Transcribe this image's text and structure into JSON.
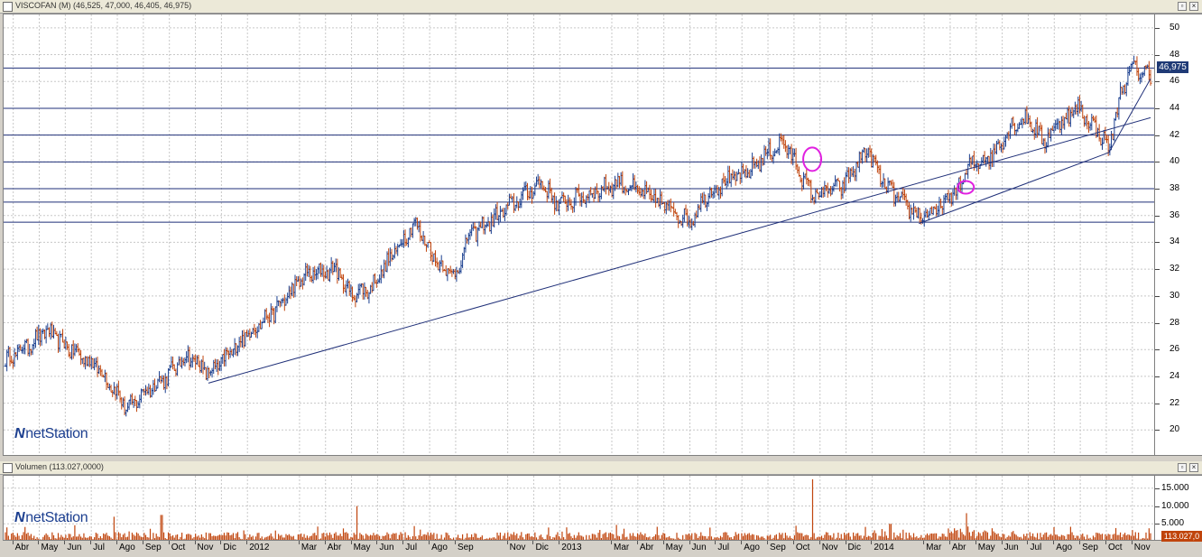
{
  "price_panel": {
    "title": "VISCOFAN (M) (46,525, 47,000, 46,405, 46,975)",
    "last_price_label": "46,975",
    "logo_text": "netStation"
  },
  "volume_panel": {
    "title": "Volumen (113.027,0000)",
    "last_volume_label": "113.027,0",
    "logo_text": "netStation"
  },
  "colors": {
    "up_bar": "#1a3f8f",
    "down_bar": "#c0440c",
    "volume_bar": "#c0440c",
    "lines": "#1f2f78",
    "grid": "#c8c8c8",
    "annotation": "#e020e0"
  },
  "chart_data": [
    {
      "type": "line",
      "subtype": "ohlc",
      "ylim": [
        18,
        51
      ],
      "yticks": [
        20,
        22,
        24,
        26,
        28,
        30,
        32,
        34,
        36,
        38,
        40,
        42,
        44,
        46,
        48,
        50
      ],
      "grid": true,
      "x_range": [
        0,
        44
      ],
      "anchors": [
        [
          0,
          25.2
        ],
        [
          1,
          26.5
        ],
        [
          1.6,
          27.4
        ],
        [
          2.5,
          26.0
        ],
        [
          3.5,
          24.8
        ],
        [
          4.2,
          23.0
        ],
        [
          4.7,
          21.5
        ],
        [
          5.3,
          22.8
        ],
        [
          6.2,
          24.0
        ],
        [
          7.0,
          25.6
        ],
        [
          7.8,
          24.2
        ],
        [
          8.2,
          24.8
        ],
        [
          9.2,
          27.0
        ],
        [
          10.3,
          28.8
        ],
        [
          11.5,
          31.5
        ],
        [
          12.7,
          32.0
        ],
        [
          13.2,
          30.2
        ],
        [
          14.0,
          30.5
        ],
        [
          14.8,
          32.8
        ],
        [
          15.7,
          35.5
        ],
        [
          16.6,
          32.5
        ],
        [
          17.3,
          31.5
        ],
        [
          17.8,
          34.5
        ],
        [
          18.6,
          35.5
        ],
        [
          19.6,
          37.0
        ],
        [
          20.6,
          38.5
        ],
        [
          21.2,
          36.8
        ],
        [
          22.3,
          37.5
        ],
        [
          23.6,
          38.5
        ],
        [
          24.6,
          37.5
        ],
        [
          25.6,
          36.5
        ],
        [
          26.3,
          35.5
        ],
        [
          26.9,
          37.5
        ],
        [
          27.6,
          38.5
        ],
        [
          28.4,
          39.0
        ],
        [
          29.2,
          40.5
        ],
        [
          29.9,
          41.5
        ],
        [
          30.6,
          39.0
        ],
        [
          31.0,
          37.5
        ],
        [
          32.2,
          38.2
        ],
        [
          33.1,
          41.0
        ],
        [
          33.7,
          38.5
        ],
        [
          34.4,
          37.0
        ],
        [
          35.1,
          36.0
        ],
        [
          35.7,
          36.2
        ],
        [
          36.6,
          38.0
        ],
        [
          37.1,
          39.8
        ],
        [
          37.9,
          40.5
        ],
        [
          38.7,
          42.8
        ],
        [
          39.3,
          43.2
        ],
        [
          39.9,
          41.5
        ],
        [
          40.4,
          42.8
        ],
        [
          41.2,
          44.0
        ],
        [
          41.9,
          42.5
        ],
        [
          42.4,
          41.0
        ],
        [
          42.9,
          45.5
        ],
        [
          43.3,
          47.0
        ],
        [
          44.0,
          46.5
        ]
      ],
      "horizontal_lines": [
        35.5,
        37.0,
        38.0,
        40.0,
        42.0,
        44.0,
        47.0
      ],
      "trendlines": [
        [
          [
            7.8,
            23.5
          ],
          [
            44.0,
            43.3
          ]
        ],
        [
          [
            35.1,
            35.4
          ],
          [
            42.4,
            40.7
          ]
        ],
        [
          [
            42.4,
            40.7
          ],
          [
            44.0,
            46.2
          ]
        ]
      ],
      "annotations": [
        {
          "shape": "ellipse",
          "x": 31.0,
          "y": 40.2
        },
        {
          "shape": "ellipse",
          "x": 36.9,
          "y": 38.1
        }
      ]
    },
    {
      "type": "bar",
      "title": "Volumen",
      "ylim": [
        0,
        18500
      ],
      "yticks": [
        5000,
        10000,
        15000
      ],
      "ytick_labels": [
        "5.000",
        "10.000",
        "15.000"
      ],
      "spikes": [
        [
          4.2,
          7000
        ],
        [
          6.0,
          7500
        ],
        [
          13.5,
          10000
        ],
        [
          31.0,
          17500
        ],
        [
          34.0,
          5000
        ],
        [
          36.9,
          8000
        ]
      ],
      "typical_volume": 1800
    }
  ],
  "x_axis": {
    "months": [
      {
        "label": "Abr",
        "x": 0.3
      },
      {
        "label": "May",
        "x": 1.3
      },
      {
        "label": "Jun",
        "x": 2.3
      },
      {
        "label": "Jul",
        "x": 3.3
      },
      {
        "label": "Ago",
        "x": 4.3
      },
      {
        "label": "Sep",
        "x": 5.3
      },
      {
        "label": "Oct",
        "x": 6.3
      },
      {
        "label": "Nov",
        "x": 7.3
      },
      {
        "label": "Dic",
        "x": 8.3
      },
      {
        "label": "2012",
        "x": 9.3
      },
      {
        "label": "Mar",
        "x": 11.3
      },
      {
        "label": "Abr",
        "x": 12.3
      },
      {
        "label": "May",
        "x": 13.3
      },
      {
        "label": "Jun",
        "x": 14.3
      },
      {
        "label": "Jul",
        "x": 15.3
      },
      {
        "label": "Ago",
        "x": 16.3
      },
      {
        "label": "Sep",
        "x": 17.3
      },
      {
        "label": "Nov",
        "x": 19.3
      },
      {
        "label": "Dic",
        "x": 20.3
      },
      {
        "label": "2013",
        "x": 21.3
      },
      {
        "label": "Mar",
        "x": 23.3
      },
      {
        "label": "Abr",
        "x": 24.3
      },
      {
        "label": "May",
        "x": 25.3
      },
      {
        "label": "Jun",
        "x": 26.3
      },
      {
        "label": "Jul",
        "x": 27.3
      },
      {
        "label": "Ago",
        "x": 28.3
      },
      {
        "label": "Sep",
        "x": 29.3
      },
      {
        "label": "Oct",
        "x": 30.3
      },
      {
        "label": "Nov",
        "x": 31.3
      },
      {
        "label": "Dic",
        "x": 32.3
      },
      {
        "label": "2014",
        "x": 33.3
      },
      {
        "label": "Mar",
        "x": 35.3
      },
      {
        "label": "Abr",
        "x": 36.3
      },
      {
        "label": "May",
        "x": 37.3
      },
      {
        "label": "Jun",
        "x": 38.3
      },
      {
        "label": "Jul",
        "x": 39.3
      },
      {
        "label": "Ago",
        "x": 40.3
      },
      {
        "label": "Sep",
        "x": 41.3
      },
      {
        "label": "Oct",
        "x": 42.3
      },
      {
        "label": "Nov",
        "x": 43.3
      }
    ]
  }
}
